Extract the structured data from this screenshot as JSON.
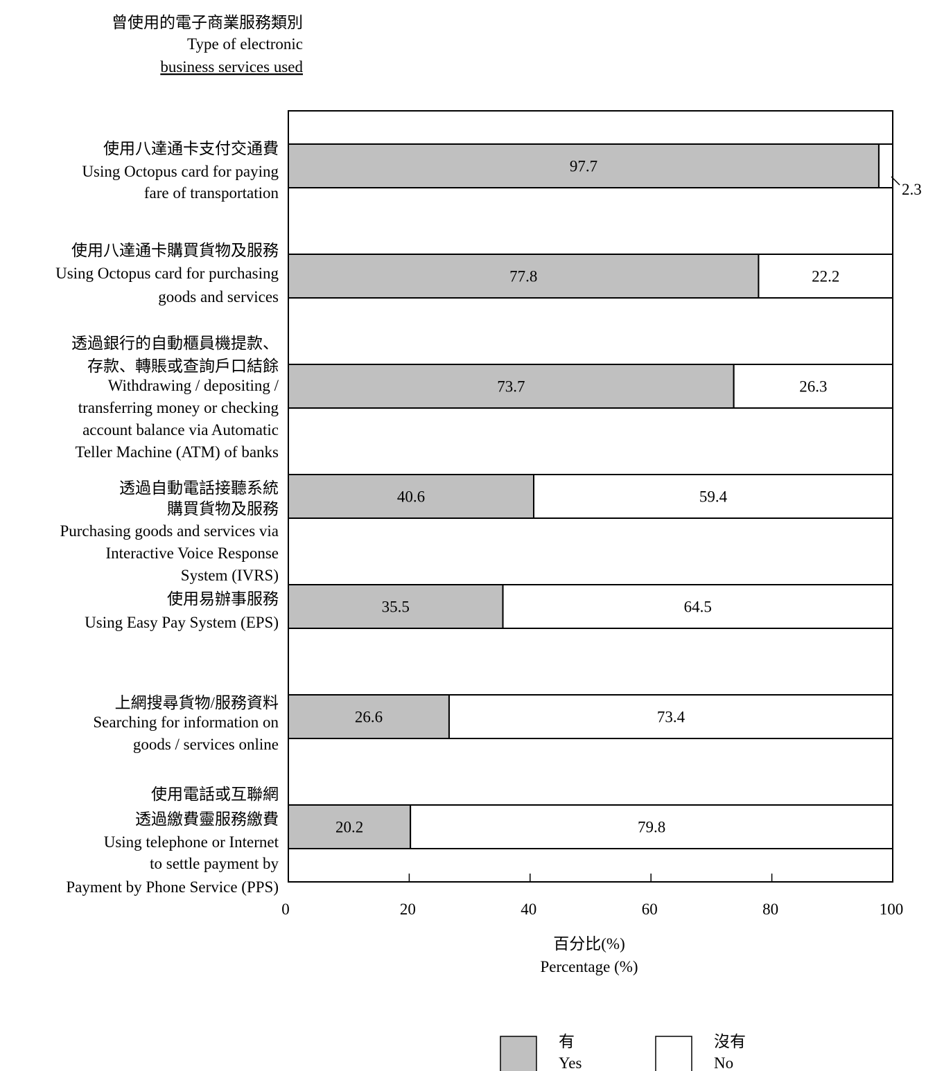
{
  "chart_data": {
    "type": "bar",
    "orientation": "horizontal",
    "stacked": true,
    "title_lines": [
      "曾使用的電子商業服務類別",
      "Type of electronic",
      "business services used"
    ],
    "categories": [
      [
        "使用八達通卡支付交通費",
        "Using Octopus card for paying",
        "fare of transportation"
      ],
      [
        "使用八達通卡購買貨物及服務",
        "Using Octopus card for purchasing",
        "goods and services"
      ],
      [
        "透過銀行的自動櫃員機提款、",
        "存款、轉賬或查詢戶口結餘",
        "Withdrawing / depositing /",
        "transferring money or checking",
        "account balance via Automatic",
        "Teller Machine (ATM) of banks"
      ],
      [
        "透過自動電話接聽系統",
        "購買貨物及服務",
        "Purchasing goods and services via",
        "Interactive Voice Response",
        "System (IVRS)"
      ],
      [
        "使用易辦事服務",
        "Using Easy Pay System (EPS)"
      ],
      [
        "上網搜尋貨物/服務資料",
        "Searching for information on",
        "goods / services online"
      ],
      [
        "使用電話或互聯網",
        "透過繳費靈服務繳費",
        "Using telephone or Internet",
        "to settle payment by",
        "Payment by Phone Service (PPS)"
      ]
    ],
    "series": [
      {
        "name": "有 Yes",
        "name_zh": "有",
        "name_en": "Yes",
        "color": "#c0c0c0",
        "values": [
          97.7,
          77.8,
          73.7,
          40.6,
          35.5,
          26.6,
          20.2
        ],
        "labels": [
          "97.7",
          "77.8",
          "73.7",
          "40.6",
          "35.5",
          "26.6",
          "20.2"
        ]
      },
      {
        "name": "沒有 No",
        "name_zh": "沒有",
        "name_en": "No",
        "color": "#ffffff",
        "values": [
          2.3,
          22.2,
          26.3,
          59.4,
          64.5,
          73.4,
          79.8
        ],
        "labels": [
          "2.3",
          "22.2",
          "26.3",
          "59.4",
          "64.5",
          "73.4",
          "79.8"
        ]
      }
    ],
    "xlabel_lines": [
      "百分比(%)",
      "Percentage (%)"
    ],
    "xlim": [
      0,
      100
    ],
    "xticks": [
      0,
      20,
      40,
      60,
      80,
      100
    ],
    "grid": false,
    "legend_position": "bottom"
  }
}
